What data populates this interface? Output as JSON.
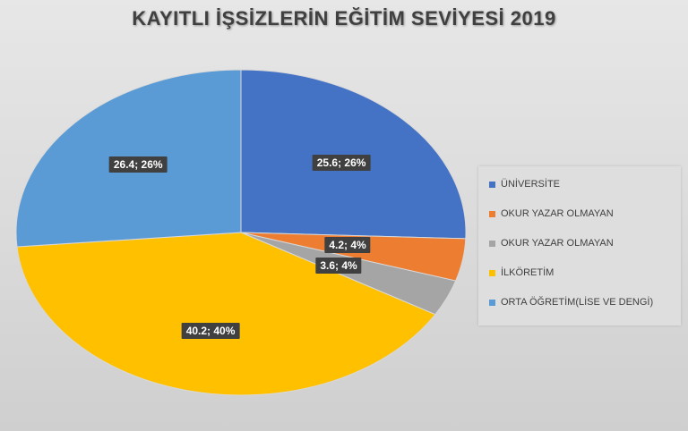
{
  "chart_data": {
    "type": "pie",
    "title": "KAYITLI İŞSİZLERİN EĞİTİM SEVİYESİ 2019",
    "categories": [
      "ÜNİVERSİTE",
      "OKUR YAZAR OLMAYAN",
      "OKUR YAZAR OLMAYAN",
      "İLKÖRETİM",
      "ORTA ÖĞRETİM(LİSE VE DENGİ)"
    ],
    "values": [
      25.6,
      4.2,
      3.6,
      40.2,
      26.4
    ],
    "data_labels": [
      "25.6; 26%",
      "4.2; 4%",
      "3.6; 4%",
      "40.2; 40%",
      "26.4; 26%"
    ],
    "colors": [
      "#4472C4",
      "#ED7D31",
      "#A5A5A5",
      "#FFC000",
      "#5B9BD5"
    ],
    "legend_position": "right"
  }
}
